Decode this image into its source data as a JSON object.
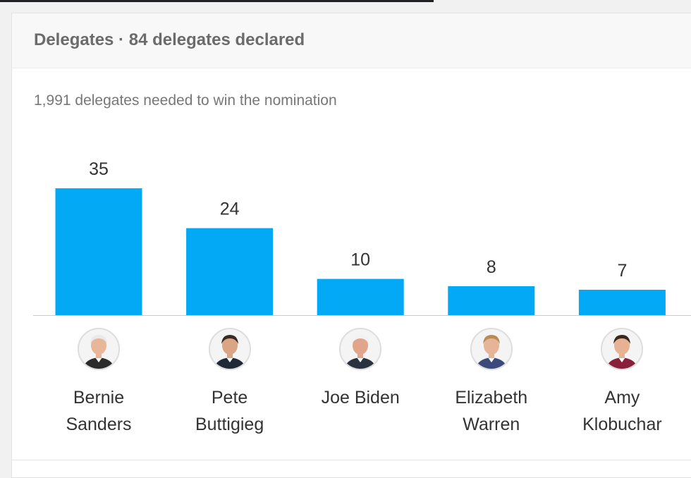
{
  "header": {
    "title": "Delegates · 84 delegates declared"
  },
  "subtitle": "1,991 delegates needed to win the nomination",
  "chart_data": {
    "type": "bar",
    "categories": [
      "Bernie Sanders",
      "Pete Buttigieg",
      "Joe Biden",
      "Elizabeth Warren",
      "Amy Klobuchar"
    ],
    "values": [
      35,
      24,
      10,
      8,
      7
    ],
    "bar_color": "#03a9f4",
    "data_labels": true,
    "grid": false
  },
  "candidates": [
    {
      "name": "Bernie Sanders",
      "avatar_icon": "candidate-photo",
      "skin": "#e8b79a",
      "hair": "#e9e9e9",
      "suit": "#2b2b2b"
    },
    {
      "name": "Pete Buttigieg",
      "avatar_icon": "candidate-photo",
      "skin": "#d9a585",
      "hair": "#3a2a22",
      "suit": "#1f2a38"
    },
    {
      "name": "Joe Biden",
      "avatar_icon": "candidate-photo",
      "skin": "#e0a58a",
      "hair": "#f2f2f2",
      "suit": "#2a3140"
    },
    {
      "name": "Elizabeth Warren",
      "avatar_icon": "candidate-photo",
      "skin": "#e6b497",
      "hair": "#b98a52",
      "suit": "#3b4a7a"
    },
    {
      "name": "Amy Klobuchar",
      "avatar_icon": "candidate-photo",
      "skin": "#e7b293",
      "hair": "#3b2720",
      "suit": "#8a1f3a"
    }
  ]
}
